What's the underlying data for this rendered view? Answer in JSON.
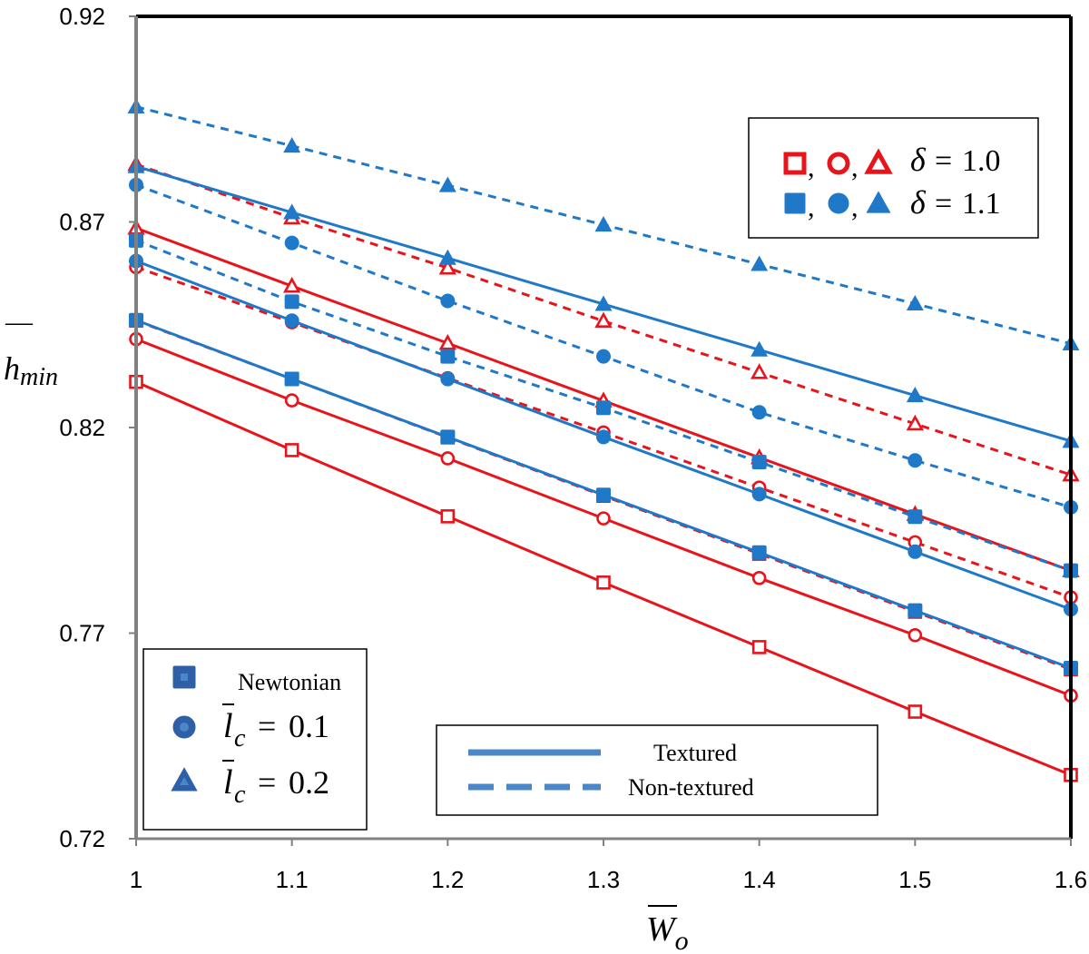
{
  "colors": {
    "red": "#e8141b",
    "blue": "#1f78c8"
  },
  "chart_data": {
    "type": "line",
    "xlabel": {
      "base": "W",
      "sub": "o"
    },
    "ylabel": {
      "base": "h",
      "sub": "min"
    },
    "xlim": [
      1,
      1.6
    ],
    "ylim": [
      0.72,
      0.92
    ],
    "xticks": [
      "1",
      "1.1",
      "1.2",
      "1.3",
      "1.4",
      "1.5",
      "1.6"
    ],
    "yticks": [
      "0.72",
      "0.77",
      "0.82",
      "0.87",
      "0.92"
    ],
    "x": [
      1.0,
      1.1,
      1.2,
      1.3,
      1.4,
      1.5,
      1.6
    ],
    "series": [
      {
        "case": "Newtonian",
        "delta": "1.0",
        "texture": "Textured",
        "color": "#e8141b",
        "marker": "square",
        "filled": false,
        "dashed": false,
        "values": [
          0.8311,
          0.8145,
          0.7984,
          0.7823,
          0.7666,
          0.7509,
          0.7355
        ]
      },
      {
        "case": "Newtonian",
        "delta": "1.0",
        "texture": "Non-textured",
        "color": "#e8141b",
        "marker": "square",
        "filled": false,
        "dashed": true,
        "values": [
          0.846,
          0.8318,
          0.8176,
          0.8034,
          0.7893,
          0.7752,
          0.7612
        ]
      },
      {
        "case": "l_c = 0.1",
        "delta": "1.0",
        "texture": "Textured",
        "color": "#e8141b",
        "marker": "circle",
        "filled": false,
        "dashed": false,
        "values": [
          0.8415,
          0.8266,
          0.8125,
          0.7979,
          0.7834,
          0.7695,
          0.7548
        ]
      },
      {
        "case": "l_c = 0.1",
        "delta": "1.0",
        "texture": "Non-textured",
        "color": "#e8141b",
        "marker": "circle",
        "filled": false,
        "dashed": true,
        "values": [
          0.859,
          0.8456,
          0.832,
          0.8188,
          0.8054,
          0.7921,
          0.7787
        ]
      },
      {
        "case": "l_c = 0.2",
        "delta": "1.0",
        "texture": "Textured",
        "color": "#e8141b",
        "marker": "triangle",
        "filled": false,
        "dashed": false,
        "values": [
          0.8685,
          0.8544,
          0.8405,
          0.8265,
          0.8127,
          0.7989,
          0.7852
        ]
      },
      {
        "case": "l_c = 0.2",
        "delta": "1.0",
        "texture": "Non-textured",
        "color": "#e8141b",
        "marker": "triangle",
        "filled": false,
        "dashed": true,
        "values": [
          0.884,
          0.871,
          0.8588,
          0.8459,
          0.8334,
          0.8209,
          0.8085
        ]
      },
      {
        "case": "Newtonian",
        "delta": "1.1",
        "texture": "Textured",
        "color": "#1f78c8",
        "marker": "square",
        "filled": true,
        "dashed": false,
        "values": [
          0.8461,
          0.8318,
          0.8177,
          0.8036,
          0.7896,
          0.7755,
          0.7615
        ]
      },
      {
        "case": "Newtonian",
        "delta": "1.1",
        "texture": "Non-textured",
        "color": "#1f78c8",
        "marker": "square",
        "filled": true,
        "dashed": true,
        "values": [
          0.8655,
          0.8506,
          0.8373,
          0.8248,
          0.8116,
          0.7983,
          0.7852
        ]
      },
      {
        "case": "l_c = 0.1",
        "delta": "1.1",
        "texture": "Textured",
        "color": "#1f78c8",
        "marker": "circle",
        "filled": true,
        "dashed": false,
        "values": [
          0.8605,
          0.846,
          0.8318,
          0.8177,
          0.8038,
          0.7898,
          0.7758
        ]
      },
      {
        "case": "l_c = 0.1",
        "delta": "1.1",
        "texture": "Non-textured",
        "color": "#1f78c8",
        "marker": "circle",
        "filled": true,
        "dashed": true,
        "values": [
          0.879,
          0.8649,
          0.8508,
          0.8373,
          0.8237,
          0.812,
          0.8006
        ]
      },
      {
        "case": "l_c = 0.2",
        "delta": "1.1",
        "texture": "Textured",
        "color": "#1f78c8",
        "marker": "triangle",
        "filled": true,
        "dashed": false,
        "values": [
          0.8835,
          0.8723,
          0.8612,
          0.85,
          0.8389,
          0.8278,
          0.8167
        ]
      },
      {
        "case": "l_c = 0.2",
        "delta": "1.1",
        "texture": "Non-textured",
        "color": "#1f78c8",
        "marker": "triangle",
        "filled": true,
        "dashed": true,
        "values": [
          0.898,
          0.8885,
          0.8789,
          0.8693,
          0.8597,
          0.8501,
          0.8404
        ]
      }
    ],
    "legend_delta": {
      "placement": "top-right",
      "entries": [
        {
          "label": "δ = 1.0",
          "symbol": "δ",
          "eq": "=",
          "value": "1.0",
          "color": "#e8141b",
          "filled": false
        },
        {
          "label": "δ = 1.1",
          "symbol": "δ",
          "eq": "=",
          "value": "1.1",
          "color": "#1f78c8",
          "filled": true
        }
      ]
    },
    "legend_markers": {
      "placement": "bottom-left",
      "entries": [
        {
          "marker": "square",
          "label": "Newtonian"
        },
        {
          "marker": "circle",
          "label": "l_c = 0.1",
          "symbol": "l",
          "sub": "c",
          "eq": "=",
          "value": "0.1"
        },
        {
          "marker": "triangle",
          "label": "l_c = 0.2",
          "symbol": "l",
          "sub": "c",
          "eq": "=",
          "value": "0.2"
        }
      ]
    },
    "legend_lines": {
      "placement": "bottom-center",
      "entries": [
        {
          "label": "Textured",
          "dashed": false
        },
        {
          "label": "Non-textured",
          "dashed": true
        }
      ]
    },
    "grid": false
  }
}
